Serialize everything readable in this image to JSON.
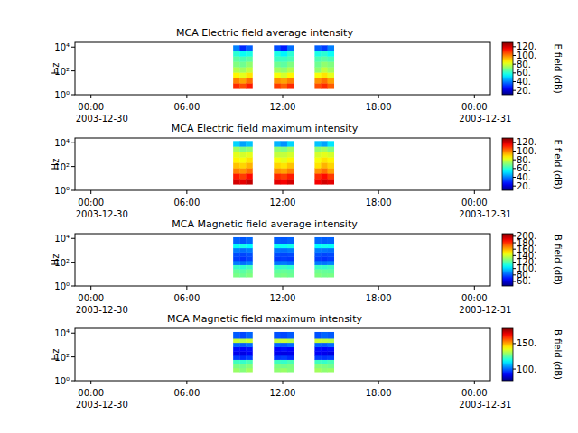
{
  "chart_data": [
    {
      "type": "heatmap",
      "title": "MCA  Electric field average intensity",
      "y_label": "Hz",
      "log": "y",
      "xlim": [
        -1,
        25
      ],
      "xticks": [
        {
          "value": 0,
          "label": "00:00"
        },
        {
          "value": 6,
          "label": "06:00"
        },
        {
          "value": 12,
          "label": "12:00"
        },
        {
          "value": 18,
          "label": "18:00"
        },
        {
          "value": 24,
          "label": "00:00"
        }
      ],
      "date_labels": [
        {
          "value": 0,
          "label": "2003-12-30"
        },
        {
          "value": 24,
          "label": "2003-12-31"
        }
      ],
      "ylim": [
        1,
        25000
      ],
      "yticks": [
        {
          "value": 1,
          "label": "10⁰"
        },
        {
          "value": 100,
          "label": "10²"
        },
        {
          "value": 10000,
          "label": "10⁴"
        }
      ],
      "y_edges": [
        3.3,
        9.4,
        27,
        76,
        218,
        620,
        1750,
        5000,
        14000
      ],
      "blocks": [
        {
          "x_edges": [
            8.9,
            9.3,
            9.7,
            10.1
          ],
          "values": [
            [
              110,
              100,
              86,
              76,
              70,
              66,
              60,
              40
            ],
            [
              106,
              96,
              82,
              74,
              68,
              64,
              56,
              30
            ],
            [
              112,
              102,
              88,
              78,
              72,
              66,
              58,
              36
            ]
          ]
        },
        {
          "x_edges": [
            11.45,
            11.87,
            12.28,
            12.7
          ],
          "values": [
            [
              108,
              98,
              84,
              74,
              68,
              62,
              58,
              34
            ],
            [
              104,
              96,
              80,
              72,
              66,
              62,
              54,
              28
            ],
            [
              110,
              100,
              86,
              76,
              70,
              64,
              60,
              38
            ]
          ]
        },
        {
          "x_edges": [
            14.0,
            14.4,
            14.8,
            15.2
          ],
          "values": [
            [
              106,
              98,
              84,
              72,
              68,
              64,
              58,
              36
            ],
            [
              110,
              102,
              88,
              78,
              72,
              66,
              60,
              32
            ],
            [
              104,
              96,
              82,
              74,
              70,
              64,
              56,
              40
            ]
          ]
        }
      ],
      "colorbar": {
        "label": "E field (dB)",
        "range": [
          10,
          130
        ],
        "ticks": [
          {
            "value": 20,
            "label": "20."
          },
          {
            "value": 40,
            "label": "40."
          },
          {
            "value": 60,
            "label": "60."
          },
          {
            "value": 80,
            "label": "80."
          },
          {
            "value": 100,
            "label": "100."
          },
          {
            "value": 120,
            "label": "120."
          }
        ]
      }
    },
    {
      "type": "heatmap",
      "title": "MCA  Electric field maximum intensity",
      "y_label": "Hz",
      "log": "y",
      "xlim": [
        -1,
        25
      ],
      "xticks": [
        {
          "value": 0,
          "label": "00:00"
        },
        {
          "value": 6,
          "label": "06:00"
        },
        {
          "value": 12,
          "label": "12:00"
        },
        {
          "value": 18,
          "label": "18:00"
        },
        {
          "value": 24,
          "label": "00:00"
        }
      ],
      "date_labels": [
        {
          "value": 0,
          "label": "2003-12-30"
        },
        {
          "value": 24,
          "label": "2003-12-31"
        }
      ],
      "ylim": [
        1,
        25000
      ],
      "yticks": [
        {
          "value": 1,
          "label": "10⁰"
        },
        {
          "value": 100,
          "label": "10²"
        },
        {
          "value": 10000,
          "label": "10⁴"
        }
      ],
      "y_edges": [
        3.3,
        9.4,
        27,
        76,
        218,
        620,
        1750,
        5000,
        14000
      ],
      "blocks": [
        {
          "x_edges": [
            8.9,
            9.3,
            9.7,
            10.1
          ],
          "values": [
            [
              120,
              112,
              100,
              92,
              86,
              82,
              74,
              50
            ],
            [
              118,
              108,
              98,
              90,
              84,
              80,
              70,
              44
            ],
            [
              122,
              114,
              102,
              94,
              88,
              82,
              72,
              48
            ]
          ]
        },
        {
          "x_edges": [
            11.45,
            11.87,
            12.28,
            12.7
          ],
          "values": [
            [
              118,
              110,
              98,
              90,
              84,
              78,
              72,
              46
            ],
            [
              116,
              108,
              96,
              88,
              82,
              78,
              70,
              42
            ],
            [
              120,
              112,
              100,
              92,
              86,
              80,
              74,
              50
            ]
          ]
        },
        {
          "x_edges": [
            14.0,
            14.4,
            14.8,
            15.2
          ],
          "values": [
            [
              116,
              110,
              98,
              88,
              84,
              80,
              72,
              48
            ],
            [
              120,
              114,
              102,
              94,
              88,
              82,
              74,
              44
            ],
            [
              118,
              108,
              96,
              90,
              86,
              80,
              70,
              52
            ]
          ]
        }
      ],
      "colorbar": {
        "label": "E field (dB)",
        "range": [
          10,
          130
        ],
        "ticks": [
          {
            "value": 20,
            "label": "20."
          },
          {
            "value": 40,
            "label": "40."
          },
          {
            "value": 60,
            "label": "60."
          },
          {
            "value": 80,
            "label": "80."
          },
          {
            "value": 100,
            "label": "100."
          },
          {
            "value": 120,
            "label": "120."
          }
        ]
      }
    },
    {
      "type": "heatmap",
      "title": "MCA  Magnetic field average intensity",
      "y_label": "Hz",
      "log": "y",
      "xlim": [
        -1,
        25
      ],
      "xticks": [
        {
          "value": 0,
          "label": "00:00"
        },
        {
          "value": 6,
          "label": "06:00"
        },
        {
          "value": 12,
          "label": "12:00"
        },
        {
          "value": 18,
          "label": "18:00"
        },
        {
          "value": 24,
          "label": "00:00"
        }
      ],
      "date_labels": [
        {
          "value": 0,
          "label": "2003-12-30"
        },
        {
          "value": 24,
          "label": "2003-12-31"
        }
      ],
      "ylim": [
        1,
        25000
      ],
      "yticks": [
        {
          "value": 1,
          "label": "10⁰"
        },
        {
          "value": 100,
          "label": "10²"
        },
        {
          "value": 10000,
          "label": "10⁴"
        }
      ],
      "y_edges": [
        5.6,
        12,
        27,
        60,
        135,
        300,
        700,
        1600,
        3600,
        12500
      ],
      "blocks": [
        {
          "x_edges": [
            8.9,
            9.3,
            9.7,
            10.1
          ],
          "values": [
            [
              126,
              123,
              116,
              86,
              76,
              78,
              86,
              108,
              82
            ],
            [
              124,
              121,
              114,
              84,
              74,
              77,
              84,
              110,
              80
            ],
            [
              127,
              124,
              117,
              87,
              77,
              79,
              86,
              107,
              83
            ]
          ]
        },
        {
          "x_edges": [
            11.45,
            11.87,
            12.28,
            12.7
          ],
          "values": [
            [
              125,
              122,
              115,
              85,
              75,
              78,
              85,
              109,
              81
            ],
            [
              126,
              123,
              116,
              86,
              76,
              77,
              84,
              108,
              80
            ],
            [
              124,
              122,
              114,
              84,
              75,
              78,
              86,
              110,
              82
            ]
          ]
        },
        {
          "x_edges": [
            14.0,
            14.4,
            14.8,
            15.2
          ],
          "values": [
            [
              127,
              124,
              116,
              86,
              76,
              79,
              86,
              107,
              83
            ],
            [
              125,
              123,
              115,
              85,
              74,
              77,
              85,
              109,
              81
            ],
            [
              126,
              122,
              117,
              87,
              76,
              78,
              84,
              108,
              82
            ]
          ]
        }
      ],
      "colorbar": {
        "label": "B field (dB)",
        "range": [
          46,
          208
        ],
        "ticks": [
          {
            "value": 60,
            "label": "60."
          },
          {
            "value": 80,
            "label": "80."
          },
          {
            "value": 100,
            "label": "100."
          },
          {
            "value": 120,
            "label": "120."
          },
          {
            "value": 140,
            "label": "140."
          },
          {
            "value": 160,
            "label": "160."
          },
          {
            "value": 180,
            "label": "180."
          },
          {
            "value": 200,
            "label": "200."
          }
        ]
      }
    },
    {
      "type": "heatmap",
      "title": "MCA  Magnetic field maximum intensity",
      "y_label": "Hz",
      "log": "y",
      "xlim": [
        -1,
        25
      ],
      "xticks": [
        {
          "value": 0,
          "label": "00:00"
        },
        {
          "value": 6,
          "label": "06:00"
        },
        {
          "value": 12,
          "label": "12:00"
        },
        {
          "value": 18,
          "label": "18:00"
        },
        {
          "value": 24,
          "label": "00:00"
        }
      ],
      "date_labels": [
        {
          "value": 0,
          "label": "2003-12-30"
        },
        {
          "value": 24,
          "label": "2003-12-31"
        }
      ],
      "ylim": [
        1,
        25000
      ],
      "yticks": [
        {
          "value": 1,
          "label": "10⁰"
        },
        {
          "value": 100,
          "label": "10²"
        },
        {
          "value": 10000,
          "label": "10⁴"
        }
      ],
      "y_edges": [
        5.6,
        12,
        27,
        60,
        135,
        300,
        700,
        1600,
        3600,
        12500
      ],
      "blocks": [
        {
          "x_edges": [
            8.9,
            9.3,
            9.7,
            10.1
          ],
          "values": [
            [
              131,
              128,
              122,
              96,
              88,
              91,
              100,
              136,
              99
            ],
            [
              129,
              127,
              121,
              94,
              87,
              90,
              99,
              134,
              97
            ],
            [
              132,
              129,
              123,
              96,
              89,
              91,
              101,
              136,
              100
            ]
          ]
        },
        {
          "x_edges": [
            11.45,
            11.87,
            12.28,
            12.7
          ],
          "values": [
            [
              130,
              128,
              122,
              95,
              88,
              90,
              100,
              135,
              98
            ],
            [
              131,
              127,
              121,
              96,
              87,
              91,
              99,
              136,
              97
            ],
            [
              129,
              128,
              123,
              94,
              88,
              90,
              101,
              134,
              99
            ]
          ]
        },
        {
          "x_edges": [
            14.0,
            14.4,
            14.8,
            15.2
          ],
          "values": [
            [
              132,
              129,
              122,
              96,
              89,
              91,
              100,
              136,
              98
            ],
            [
              130,
              128,
              121,
              95,
              88,
              90,
              99,
              135,
              100
            ],
            [
              131,
              127,
              123,
              96,
              87,
              91,
              101,
              134,
              99
            ]
          ]
        }
      ],
      "colorbar": {
        "label": "B field (dB)",
        "range": [
          77,
          180
        ],
        "ticks": [
          {
            "value": 100,
            "label": "100."
          },
          {
            "value": 150,
            "label": "150."
          }
        ]
      }
    }
  ]
}
